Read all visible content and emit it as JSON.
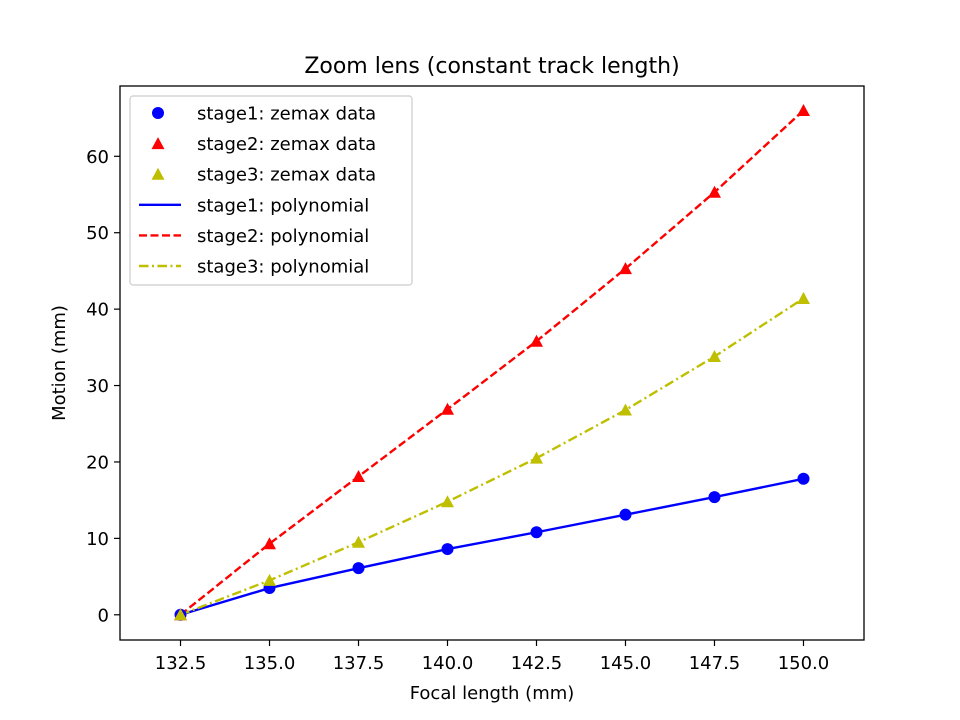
{
  "chart_data": {
    "type": "line",
    "title": "Zoom lens (constant track length)",
    "xlabel": "Focal length (mm)",
    "ylabel": "Motion (mm)",
    "xlim": [
      130.8,
      151.7
    ],
    "ylim": [
      -3.3,
      69.2
    ],
    "x_ticks": [
      132.5,
      135.0,
      137.5,
      140.0,
      142.5,
      145.0,
      147.5,
      150.0
    ],
    "y_ticks": [
      0,
      10,
      20,
      30,
      40,
      50,
      60
    ],
    "grid": false,
    "legend_position": "upper-left",
    "x": [
      132.5,
      135.0,
      137.5,
      140.0,
      142.5,
      145.0,
      147.5,
      150.0
    ],
    "series": [
      {
        "name": "stage1: zemax data",
        "kind": "markers",
        "marker": "circle",
        "color": "#0000ff",
        "values": [
          0.0,
          3.5,
          6.1,
          8.6,
          10.8,
          13.1,
          15.4,
          17.8
        ]
      },
      {
        "name": "stage2: zemax data",
        "kind": "markers",
        "marker": "triangle",
        "color": "#ff0000",
        "values": [
          0.0,
          9.3,
          18.1,
          26.9,
          35.8,
          45.3,
          55.3,
          66.0
        ]
      },
      {
        "name": "stage3: zemax data",
        "kind": "markers",
        "marker": "triangle",
        "color": "#bfbf00",
        "values": [
          0.0,
          4.5,
          9.5,
          14.8,
          20.5,
          26.8,
          33.8,
          41.4
        ]
      },
      {
        "name": "stage1: polynomial",
        "kind": "line",
        "dash": "solid",
        "color": "#0000ff",
        "values": [
          0.0,
          3.5,
          6.1,
          8.6,
          10.8,
          13.1,
          15.4,
          17.8
        ]
      },
      {
        "name": "stage2: polynomial",
        "kind": "line",
        "dash": "dashed",
        "color": "#ff0000",
        "values": [
          0.0,
          9.3,
          18.1,
          26.9,
          35.8,
          45.3,
          55.3,
          66.0
        ]
      },
      {
        "name": "stage3: polynomial",
        "kind": "line",
        "dash": "dashdot",
        "color": "#bfbf00",
        "values": [
          0.0,
          4.5,
          9.5,
          14.8,
          20.5,
          26.8,
          33.8,
          41.4
        ]
      }
    ]
  }
}
